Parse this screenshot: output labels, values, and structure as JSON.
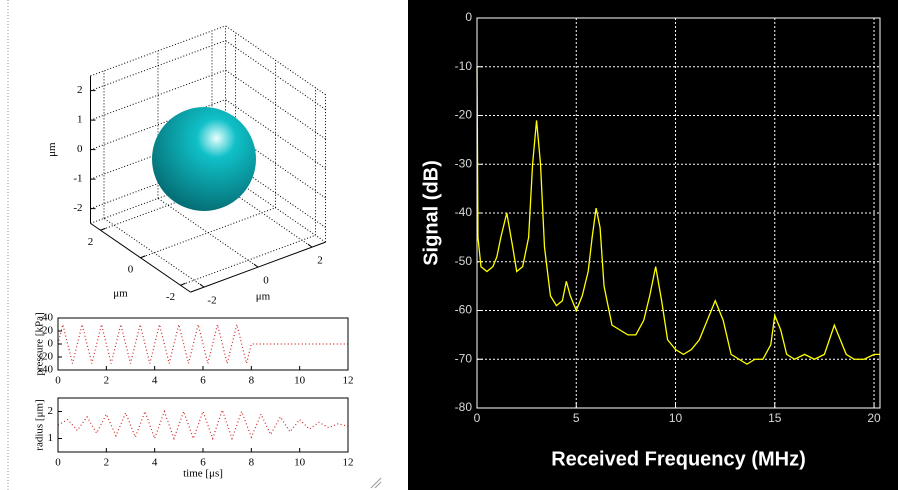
{
  "chart_data": [
    {
      "type": "surface3d",
      "xlabel": "μm",
      "ylabel": "μm",
      "zlabel": "μm",
      "xlim": [
        -2.5,
        2.5
      ],
      "ylim": [
        -2.5,
        2.5
      ],
      "zlim": [
        -2.5,
        2.5
      ],
      "xticks": [
        -2,
        0,
        2
      ],
      "yticks": [
        -2,
        0,
        2
      ],
      "zticks": [
        -2,
        -1,
        0,
        1,
        2
      ],
      "color": "#10c0c8",
      "grid": true
    },
    {
      "type": "line",
      "ylabel": "pressure [kPa]",
      "color": "#cc2222",
      "linestyle": "dotted",
      "xlim": [
        0,
        12
      ],
      "xticks": [
        0,
        2,
        4,
        6,
        8,
        10,
        12
      ],
      "ylim": [
        -40,
        40
      ],
      "yticks": [
        -40,
        -20,
        0,
        20,
        40
      ],
      "grid": false,
      "x": [
        0,
        0.2,
        0.4,
        0.6,
        0.8,
        1.0,
        1.2,
        1.4,
        1.6,
        1.8,
        2.0,
        2.2,
        2.4,
        2.6,
        2.8,
        3.0,
        3.2,
        3.4,
        3.6,
        3.8,
        4.0,
        4.2,
        4.4,
        4.6,
        4.8,
        5.0,
        5.2,
        5.4,
        5.6,
        5.8,
        6.0,
        6.2,
        6.4,
        6.6,
        6.8,
        7.0,
        7.2,
        7.4,
        7.6,
        7.8,
        8.0,
        9,
        10,
        11,
        12
      ],
      "values": [
        0,
        30,
        0,
        -30,
        0,
        30,
        0,
        -30,
        0,
        30,
        0,
        -30,
        0,
        30,
        0,
        -30,
        0,
        30,
        0,
        -30,
        0,
        30,
        0,
        -30,
        0,
        30,
        0,
        -30,
        0,
        30,
        0,
        -30,
        0,
        30,
        0,
        -30,
        0,
        30,
        0,
        -30,
        0,
        0,
        0,
        0,
        0
      ]
    },
    {
      "type": "line",
      "ylabel": "radius [μm]",
      "xlabel": "time [μs]",
      "color": "#cc2222",
      "linestyle": "dotted",
      "xlim": [
        0,
        12
      ],
      "xticks": [
        0,
        2,
        4,
        6,
        8,
        10,
        12
      ],
      "ylim": [
        0.5,
        2.5
      ],
      "yticks": [
        1,
        2
      ],
      "grid": false,
      "x": [
        0,
        0.4,
        0.8,
        1.2,
        1.6,
        2.0,
        2.4,
        2.8,
        3.2,
        3.6,
        4.0,
        4.4,
        4.8,
        5.2,
        5.6,
        6.0,
        6.4,
        6.8,
        7.2,
        7.6,
        8.0,
        8.4,
        8.8,
        9.2,
        9.6,
        10.0,
        10.4,
        10.8,
        11.2,
        11.6,
        12
      ],
      "values": [
        1.5,
        1.7,
        1.3,
        1.8,
        1.2,
        1.9,
        1.1,
        1.95,
        1.05,
        2.0,
        1.0,
        2.0,
        1.0,
        2.0,
        1.0,
        2.0,
        1.0,
        2.05,
        1.0,
        2.0,
        1.05,
        1.9,
        1.15,
        1.8,
        1.25,
        1.7,
        1.35,
        1.6,
        1.4,
        1.55,
        1.45
      ]
    },
    {
      "type": "line",
      "xlabel": "Received Frequency (MHz)",
      "ylabel": "Signal (dB)",
      "color": "#ffff00",
      "background": "#000000",
      "linestyle": "solid",
      "xlim": [
        0,
        20.3
      ],
      "xticks": [
        0,
        5,
        10,
        15,
        20
      ],
      "ylim": [
        -80,
        0
      ],
      "yticks": [
        0,
        -10,
        -20,
        -30,
        -40,
        -50,
        -60,
        -70,
        -80
      ],
      "grid": true,
      "x": [
        0,
        0.05,
        0.2,
        0.5,
        0.8,
        1.0,
        1.2,
        1.5,
        1.8,
        2.0,
        2.3,
        2.6,
        2.8,
        3.0,
        3.2,
        3.4,
        3.7,
        4.0,
        4.3,
        4.5,
        4.7,
        5.0,
        5.3,
        5.6,
        5.8,
        6.0,
        6.2,
        6.4,
        6.8,
        7.2,
        7.6,
        8.0,
        8.4,
        8.7,
        9.0,
        9.3,
        9.6,
        10.0,
        10.4,
        10.8,
        11.2,
        11.6,
        12.0,
        12.4,
        12.8,
        13.2,
        13.6,
        14.0,
        14.4,
        14.8,
        15.0,
        15.3,
        15.6,
        16.0,
        16.5,
        17.0,
        17.5,
        18.0,
        18.3,
        18.6,
        19.0,
        19.5,
        20.0,
        20.3
      ],
      "values": [
        -10,
        -45,
        -51,
        -52,
        -51,
        -49,
        -45,
        -40,
        -47,
        -52,
        -51,
        -45,
        -30,
        -21,
        -30,
        -47,
        -57,
        -59,
        -58,
        -54,
        -57,
        -60,
        -57,
        -52,
        -45,
        -39,
        -43,
        -55,
        -63,
        -64,
        -65,
        -65,
        -62,
        -57,
        -51,
        -58,
        -66,
        -68,
        -69,
        -68,
        -66,
        -62,
        -58,
        -62,
        -69,
        -70,
        -71,
        -70,
        -70,
        -67,
        -61,
        -64,
        -69,
        -70,
        -69,
        -70,
        -69,
        -63,
        -66,
        -69,
        -70,
        -70,
        -69,
        -69
      ]
    }
  ]
}
